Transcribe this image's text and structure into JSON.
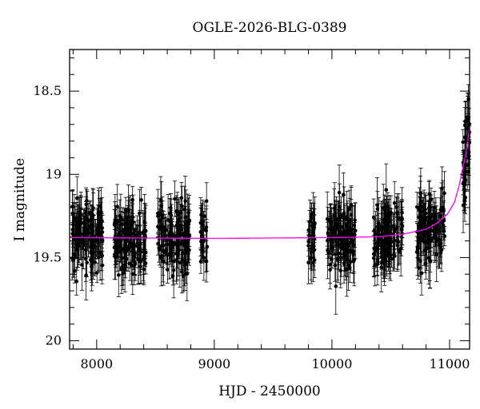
{
  "chart_data": {
    "type": "scatter",
    "title": "OGLE-2026-BLG-0389",
    "xlabel": "HJD - 2450000",
    "ylabel": "I magnitude",
    "xlim": [
      7770,
      11170
    ],
    "ylim": [
      20.05,
      18.25
    ],
    "y_inverted": true,
    "grid": false,
    "legend": "none",
    "colors": {
      "points": "#000000",
      "model": "#ff00ff"
    },
    "xticks": [
      {
        "value": 8000,
        "label": "8000"
      },
      {
        "value": 9000,
        "label": "9000"
      },
      {
        "value": 10000,
        "label": "10000"
      },
      {
        "value": 11000,
        "label": "11000"
      }
    ],
    "yticks": [
      {
        "value": 18.5,
        "label": "18.5"
      },
      {
        "value": 19,
        "label": "19"
      },
      {
        "value": 19.5,
        "label": "19.5"
      },
      {
        "value": 20,
        "label": "20"
      }
    ],
    "observing_seasons": [
      {
        "start": 7790,
        "end": 8050,
        "count": 130
      },
      {
        "start": 8150,
        "end": 8420,
        "count": 130
      },
      {
        "start": 8520,
        "end": 8790,
        "count": 130
      },
      {
        "start": 8880,
        "end": 8940,
        "count": 25
      },
      {
        "start": 9800,
        "end": 9860,
        "count": 30
      },
      {
        "start": 9960,
        "end": 10200,
        "count": 120
      },
      {
        "start": 10350,
        "end": 10600,
        "count": 120
      },
      {
        "start": 10720,
        "end": 10960,
        "count": 120
      },
      {
        "start": 11110,
        "end": 11170,
        "count": 45
      }
    ],
    "baseline_magnitude": 19.38,
    "scatter_rms": 0.15,
    "model_curve": {
      "name": "",
      "x": [
        7770,
        9000,
        10000,
        10400,
        10600,
        10800,
        10900,
        10980,
        11040,
        11080,
        11110,
        11140,
        11170
      ],
      "y": [
        19.38,
        19.385,
        19.38,
        19.375,
        19.36,
        19.33,
        19.29,
        19.24,
        19.17,
        19.07,
        18.97,
        18.87,
        18.72
      ]
    }
  }
}
